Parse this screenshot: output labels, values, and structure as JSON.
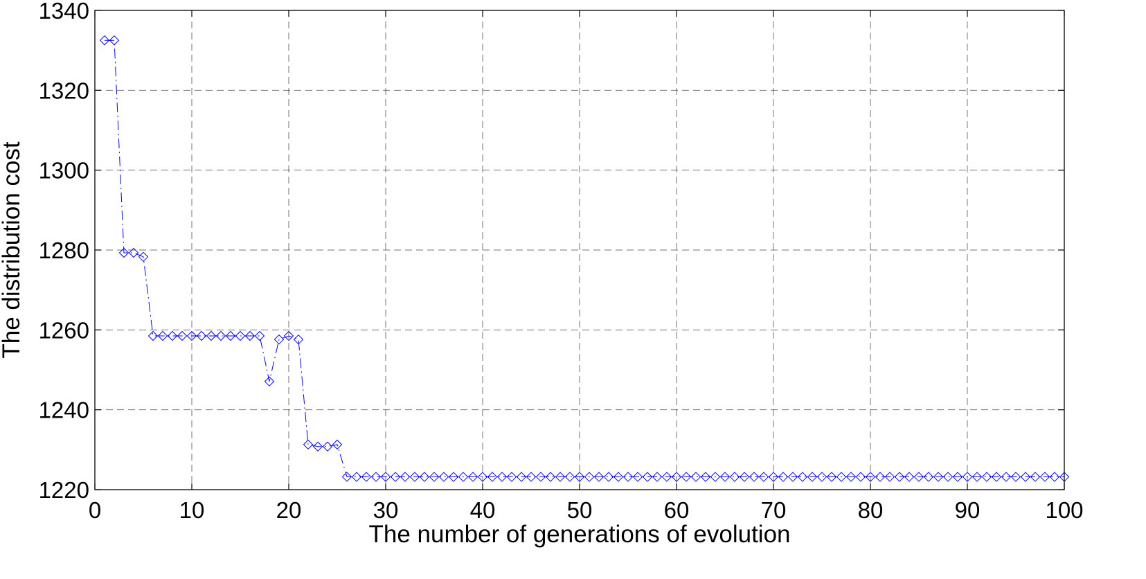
{
  "chart_data": {
    "type": "line",
    "xlabel": "The number of generations of evolution",
    "ylabel": "The distribution cost",
    "xlim": [
      0,
      100
    ],
    "ylim": [
      1220,
      1340
    ],
    "xticks": [
      0,
      10,
      20,
      30,
      40,
      50,
      60,
      70,
      80,
      90,
      100
    ],
    "yticks": [
      1220,
      1240,
      1260,
      1280,
      1300,
      1320,
      1340
    ],
    "grid": true,
    "line_style": "dash-dot",
    "marker": "diamond",
    "colors": {
      "series": "#0000ff",
      "grid": "#000000",
      "axes": "#000000"
    },
    "series": [
      {
        "x": [
          1,
          2,
          3,
          4,
          5,
          6,
          7,
          8,
          9,
          10,
          11,
          12,
          13,
          14,
          15,
          16,
          17,
          18,
          19,
          20,
          21,
          22,
          23,
          24,
          25,
          26,
          27,
          28,
          29,
          30,
          31,
          32,
          33,
          34,
          35,
          36,
          37,
          38,
          39,
          40,
          41,
          42,
          43,
          44,
          45,
          46,
          47,
          48,
          49,
          50,
          51,
          52,
          53,
          54,
          55,
          56,
          57,
          58,
          59,
          60,
          61,
          62,
          63,
          64,
          65,
          66,
          67,
          68,
          69,
          70,
          71,
          72,
          73,
          74,
          75,
          76,
          77,
          78,
          79,
          80,
          81,
          82,
          83,
          84,
          85,
          86,
          87,
          88,
          89,
          90,
          91,
          92,
          93,
          94,
          95,
          96,
          97,
          98,
          99,
          100
        ],
        "values": [
          1332.5,
          1332.5,
          1279.3,
          1279.3,
          1278.3,
          1258.5,
          1258.5,
          1258.5,
          1258.5,
          1258.5,
          1258.5,
          1258.5,
          1258.5,
          1258.5,
          1258.5,
          1258.5,
          1258.5,
          1247.1,
          1257.6,
          1258.5,
          1257.6,
          1231.3,
          1230.8,
          1230.8,
          1231.3,
          1223.2,
          1223.2,
          1223.2,
          1223.2,
          1223.2,
          1223.2,
          1223.2,
          1223.2,
          1223.2,
          1223.2,
          1223.2,
          1223.2,
          1223.2,
          1223.2,
          1223.2,
          1223.2,
          1223.2,
          1223.2,
          1223.2,
          1223.2,
          1223.2,
          1223.2,
          1223.2,
          1223.2,
          1223.2,
          1223.2,
          1223.2,
          1223.2,
          1223.2,
          1223.2,
          1223.2,
          1223.2,
          1223.2,
          1223.2,
          1223.2,
          1223.2,
          1223.2,
          1223.2,
          1223.2,
          1223.2,
          1223.2,
          1223.2,
          1223.2,
          1223.2,
          1223.2,
          1223.2,
          1223.2,
          1223.2,
          1223.2,
          1223.2,
          1223.2,
          1223.2,
          1223.2,
          1223.2,
          1223.2,
          1223.2,
          1223.2,
          1223.2,
          1223.2,
          1223.2,
          1223.2,
          1223.2,
          1223.2,
          1223.2,
          1223.2,
          1223.2,
          1223.2,
          1223.2,
          1223.2,
          1223.2,
          1223.2,
          1223.2,
          1223.2,
          1223.2,
          1223.2
        ]
      }
    ]
  }
}
